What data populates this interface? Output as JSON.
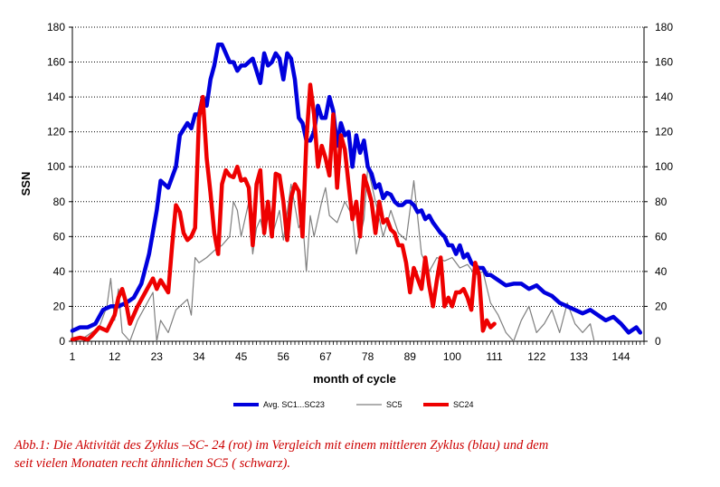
{
  "chart_data": {
    "type": "line",
    "xlabel": "month of cycle",
    "ylabel": "SSN",
    "xlim": [
      1,
      150
    ],
    "ylim": [
      0,
      180
    ],
    "x_ticks": [
      "1",
      "12",
      "23",
      "34",
      "45",
      "56",
      "67",
      "78",
      "89",
      "100",
      "111",
      "122",
      "133",
      "144"
    ],
    "y_ticks": [
      "0",
      "20",
      "40",
      "60",
      "80",
      "100",
      "120",
      "140",
      "160",
      "180"
    ],
    "y2_ticks": [
      "0",
      "20",
      "40",
      "60",
      "80",
      "100",
      "120",
      "140",
      "160",
      "180"
    ],
    "grid": "horizontal",
    "legend_position": "bottom",
    "colors": {
      "avg": "#0000dd",
      "sc5": "#7f7f7f",
      "sc24": "#ee0000"
    },
    "series": [
      {
        "name": "Avg. SC1...SC23",
        "color": "#0000dd",
        "x": [
          1,
          3,
          5,
          7,
          9,
          11,
          13,
          15,
          17,
          19,
          21,
          23,
          24,
          26,
          28,
          29,
          31,
          32,
          33,
          34,
          35,
          36,
          37,
          38,
          39,
          40,
          41,
          42,
          43,
          44,
          45,
          46,
          47,
          48,
          49,
          50,
          51,
          52,
          53,
          54,
          55,
          56,
          57,
          58,
          59,
          60,
          61,
          62,
          63,
          64,
          65,
          66,
          67,
          68,
          69,
          70,
          71,
          72,
          73,
          74,
          75,
          76,
          77,
          78,
          79,
          80,
          81,
          82,
          83,
          84,
          85,
          86,
          87,
          88,
          89,
          90,
          91,
          92,
          93,
          94,
          95,
          96,
          97,
          98,
          99,
          100,
          101,
          102,
          103,
          104,
          105,
          106,
          107,
          108,
          109,
          110,
          112,
          114,
          116,
          118,
          120,
          122,
          124,
          126,
          128,
          130,
          132,
          134,
          136,
          138,
          140,
          142,
          144,
          146,
          148,
          149
        ],
        "y": [
          6,
          8,
          8,
          10,
          18,
          20,
          20,
          22,
          25,
          33,
          50,
          75,
          92,
          88,
          100,
          118,
          125,
          122,
          130,
          130,
          140,
          135,
          150,
          158,
          170,
          170,
          165,
          160,
          160,
          155,
          158,
          158,
          160,
          162,
          155,
          148,
          165,
          158,
          160,
          165,
          162,
          150,
          165,
          162,
          150,
          128,
          125,
          115,
          115,
          120,
          135,
          128,
          128,
          140,
          132,
          112,
          125,
          118,
          120,
          100,
          118,
          108,
          115,
          100,
          96,
          88,
          90,
          82,
          85,
          84,
          80,
          78,
          78,
          80,
          80,
          78,
          74,
          75,
          70,
          72,
          68,
          65,
          62,
          60,
          55,
          55,
          50,
          55,
          48,
          50,
          45,
          43,
          42,
          42,
          38,
          38,
          35,
          32,
          33,
          33,
          30,
          32,
          28,
          26,
          22,
          20,
          18,
          16,
          18,
          15,
          12,
          14,
          10,
          5,
          8,
          5
        ]
      },
      {
        "name": "SC5",
        "color": "#7f7f7f",
        "x": [
          1,
          4,
          6,
          8,
          10,
          11,
          12,
          13,
          14,
          16,
          18,
          20,
          22,
          23,
          24,
          26,
          28,
          30,
          31,
          32,
          33,
          34,
          36,
          38,
          40,
          42,
          43,
          44,
          45,
          47,
          48,
          49,
          50,
          51,
          52,
          53,
          55,
          56,
          58,
          60,
          61,
          62,
          63,
          64,
          66,
          67,
          68,
          70,
          72,
          74,
          75,
          77,
          78,
          79,
          80,
          82,
          84,
          86,
          88,
          90,
          92,
          94,
          96,
          98,
          100,
          102,
          104,
          106,
          108,
          110,
          112,
          114,
          116,
          118,
          120,
          122,
          124,
          126,
          128,
          130,
          132,
          134,
          136,
          137
        ],
        "y": [
          0,
          2,
          5,
          8,
          20,
          36,
          12,
          30,
          5,
          0,
          12,
          20,
          28,
          0,
          12,
          5,
          18,
          22,
          24,
          15,
          48,
          45,
          48,
          52,
          55,
          60,
          80,
          75,
          60,
          80,
          50,
          65,
          70,
          60,
          78,
          60,
          75,
          58,
          90,
          65,
          70,
          40,
          72,
          60,
          80,
          88,
          72,
          68,
          80,
          72,
          50,
          70,
          100,
          90,
          80,
          60,
          75,
          62,
          58,
          92,
          50,
          40,
          48,
          46,
          48,
          42,
          44,
          38,
          40,
          22,
          15,
          5,
          0,
          12,
          20,
          5,
          10,
          18,
          5,
          22,
          10,
          5,
          10,
          0
        ]
      },
      {
        "name": "SC24",
        "color": "#ee0000",
        "x": [
          1,
          3,
          5,
          6,
          8,
          10,
          12,
          13,
          14,
          15,
          16,
          18,
          20,
          22,
          23,
          24,
          26,
          27,
          28,
          29,
          30,
          31,
          32,
          33,
          34,
          35,
          36,
          37,
          38,
          39,
          40,
          41,
          42,
          43,
          44,
          45,
          46,
          47,
          48,
          49,
          50,
          51,
          52,
          53,
          54,
          55,
          56,
          57,
          58,
          59,
          60,
          61,
          62,
          63,
          64,
          65,
          66,
          67,
          68,
          69,
          70,
          71,
          72,
          73,
          74,
          75,
          76,
          77,
          78,
          79,
          80,
          81,
          82,
          83,
          84,
          85,
          86,
          87,
          88,
          89,
          90,
          91,
          92,
          93,
          94,
          95,
          96,
          97,
          98,
          99,
          100,
          101,
          102,
          103,
          104,
          105,
          106,
          107,
          108,
          109,
          110,
          111
        ],
        "y": [
          1,
          2,
          1,
          3,
          8,
          6,
          15,
          25,
          30,
          22,
          10,
          20,
          28,
          36,
          30,
          35,
          28,
          55,
          78,
          74,
          62,
          58,
          60,
          65,
          128,
          140,
          105,
          85,
          62,
          50,
          90,
          98,
          95,
          94,
          100,
          92,
          93,
          88,
          55,
          90,
          98,
          62,
          80,
          60,
          96,
          95,
          80,
          58,
          82,
          90,
          86,
          60,
          115,
          147,
          130,
          100,
          112,
          105,
          95,
          130,
          88,
          118,
          110,
          90,
          70,
          80,
          60,
          95,
          88,
          80,
          62,
          80,
          68,
          70,
          64,
          62,
          55,
          55,
          45,
          28,
          42,
          36,
          30,
          48,
          32,
          20,
          35,
          48,
          20,
          25,
          20,
          28,
          28,
          30,
          25,
          18,
          45,
          38,
          6,
          12,
          8,
          10
        ]
      }
    ]
  },
  "caption": {
    "line1": "Abb.1: Die Aktivität des Zyklus –SC- 24 (rot) im Vergleich mit einem mittleren Zyklus (blau) und dem",
    "line2": "seit vielen  Monaten recht ähnlichen SC5 ( schwarz)."
  }
}
